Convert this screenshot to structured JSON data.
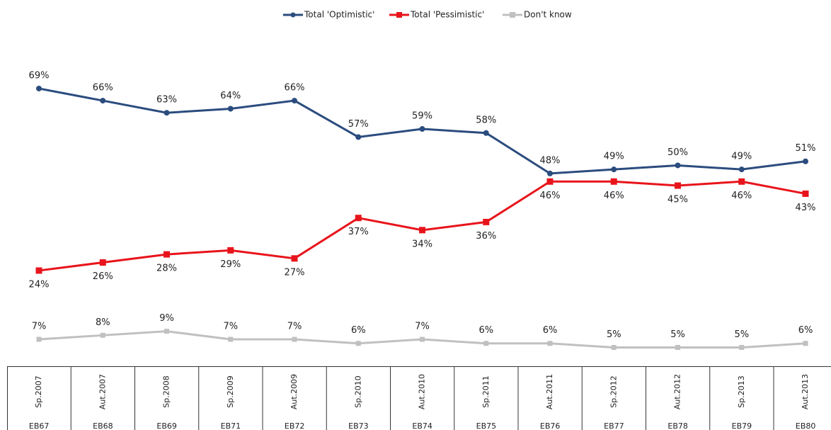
{
  "chart_data": {
    "type": "line",
    "categories": [
      "Sp.2007",
      "Aut.2007",
      "Sp.2008",
      "Sp.2009",
      "Aut.2009",
      "Sp.2010",
      "Aut.2010",
      "Sp.2011",
      "Aut.2011",
      "Sp.2012",
      "Aut.2012",
      "Sp.2013",
      "Aut.2013"
    ],
    "category_waves": [
      "EB67",
      "EB68",
      "EB69",
      "EB71",
      "EB72",
      "EB73",
      "EB74",
      "EB75",
      "EB76",
      "EB77",
      "EB78",
      "EB79",
      "EB80"
    ],
    "ylim": [
      0,
      72
    ],
    "series": [
      {
        "name": "Total 'Optimistic'",
        "color": "#2b4c7e",
        "marker": "circle",
        "values": [
          69,
          66,
          63,
          64,
          66,
          57,
          59,
          58,
          48,
          49,
          50,
          49,
          51
        ],
        "value_labels": [
          "69%",
          "66%",
          "63%",
          "64%",
          "66%",
          "57%",
          "59%",
          "58%",
          "48%",
          "49%",
          "50%",
          "49%",
          "51%"
        ]
      },
      {
        "name": "Total 'Pessimistic'",
        "color": "#e8141b",
        "marker": "square",
        "values": [
          24,
          26,
          28,
          29,
          27,
          37,
          34,
          36,
          46,
          46,
          45,
          46,
          43
        ],
        "value_labels": [
          "24%",
          "26%",
          "28%",
          "29%",
          "27%",
          "37%",
          "34%",
          "36%",
          "46%",
          "46%",
          "45%",
          "46%",
          "43%"
        ]
      },
      {
        "name": "Don't know",
        "color": "#c0c0c0",
        "marker": "square",
        "values": [
          7,
          8,
          9,
          7,
          7,
          6,
          7,
          6,
          6,
          5,
          5,
          5,
          6
        ],
        "value_labels": [
          "7%",
          "8%",
          "9%",
          "7%",
          "7%",
          "6%",
          "7%",
          "6%",
          "6%",
          "5%",
          "5%",
          "5%",
          "6%"
        ]
      }
    ]
  }
}
